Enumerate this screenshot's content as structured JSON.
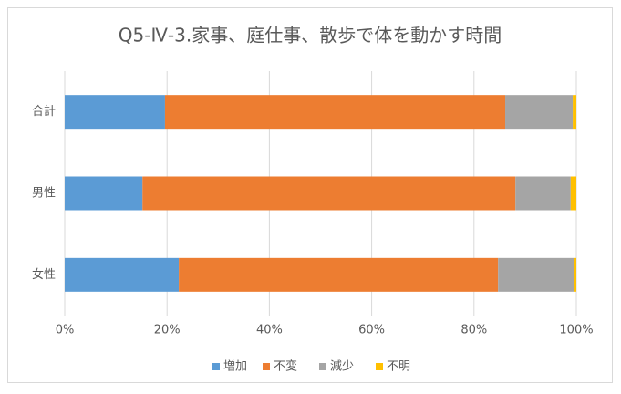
{
  "chart_data": {
    "type": "stacked_bar_horizontal",
    "title": "Q5-Ⅳ-3.家事、庭仕事、散歩で体を動かす時間",
    "categories": [
      "合計",
      "男性",
      "女性"
    ],
    "series": [
      {
        "name": "増加",
        "color": "#5b9bd5",
        "values": [
          19.6,
          15.2,
          22.3
        ]
      },
      {
        "name": "不変",
        "color": "#ed7d31",
        "values": [
          66.5,
          72.9,
          62.4
        ]
      },
      {
        "name": "減少",
        "color": "#a5a5a5",
        "values": [
          13.2,
          10.8,
          14.9
        ]
      },
      {
        "name": "不明",
        "color": "#ffc000",
        "values": [
          0.7,
          1.1,
          0.4
        ]
      }
    ],
    "xlim": [
      0,
      100
    ],
    "xticks": [
      {
        "value": 0,
        "label": "0%"
      },
      {
        "value": 20,
        "label": "20%"
      },
      {
        "value": 40,
        "label": "40%"
      },
      {
        "value": 60,
        "label": "60%"
      },
      {
        "value": 80,
        "label": "80%"
      },
      {
        "value": 100,
        "label": "100%"
      }
    ],
    "grid": true,
    "legend": "bottom"
  }
}
